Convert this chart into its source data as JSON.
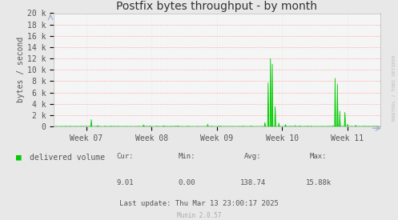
{
  "title": "Postfix bytes throughput - by month",
  "ylabel": "bytes / second",
  "background_color": "#e8e8e8",
  "plot_bg_color": "#f5f5f5",
  "grid_color_h": "#ffaaaa",
  "grid_color_v": "#dddddd",
  "line_color": "#00cc00",
  "fill_color": "#00cc00",
  "x_tick_labels": [
    "Week 07",
    "Week 08",
    "Week 09",
    "Week 10",
    "Week 11"
  ],
  "x_tick_positions": [
    0.1,
    0.3,
    0.5,
    0.7,
    0.9
  ],
  "y_tick_vals": [
    0,
    2000,
    4000,
    6000,
    8000,
    10000,
    12000,
    14000,
    16000,
    18000,
    20000
  ],
  "y_tick_labels": [
    "0",
    "2 k",
    "4 k",
    "6 k",
    "8 k",
    "10 k",
    "12 k",
    "14 k",
    "16 k",
    "18 k",
    "20 k"
  ],
  "ylim": [
    0,
    20000
  ],
  "xlim": [
    0,
    1
  ],
  "legend_label": "delivered volume",
  "cur_label": "Cur:",
  "cur_val": "9.01",
  "min_label": "Min:",
  "min_val": "0.00",
  "avg_label": "Avg:",
  "avg_val": "138.74",
  "max_label": "Max:",
  "max_val": "15.88k",
  "last_update": "Last update: Thu Mar 13 23:00:17 2025",
  "munin_version": "Munin 2.0.57",
  "watermark": "RRDTOOL / TOBI OETIKER",
  "title_fontsize": 10,
  "axis_fontsize": 7,
  "legend_fontsize": 7,
  "footer_fontsize": 6.5,
  "munin_fontsize": 5.5,
  "watermark_fontsize": 4.5
}
